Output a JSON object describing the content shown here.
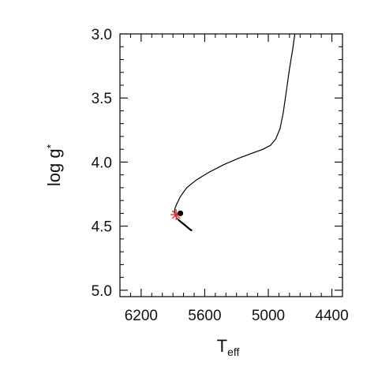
{
  "chart_data": {
    "type": "line",
    "xlabel": "T",
    "xlabel_subscript": "eff",
    "ylabel": "log g",
    "ylabel_subscript": "*",
    "xlim": [
      6400,
      4300
    ],
    "ylim": [
      5.05,
      3.0
    ],
    "x_ticks": [
      6200,
      5600,
      5000,
      4400
    ],
    "x_tick_labels": [
      "6200",
      "5600",
      "5000",
      "4400"
    ],
    "y_ticks": [
      3.0,
      3.5,
      4.0,
      4.5,
      5.0
    ],
    "y_tick_labels": [
      "3.0",
      "3.5",
      "4.0",
      "4.5",
      "5.0"
    ],
    "grid": false,
    "series": [
      {
        "values_x": [
          4750,
          4770,
          4800,
          4830,
          4860,
          4890,
          4930,
          4980,
          5050,
          5150,
          5280,
          5420,
          5560,
          5680,
          5770,
          5830,
          5865,
          5880,
          5885,
          5880,
          5870,
          5850,
          5820,
          5790,
          5760,
          5740,
          5720
        ],
        "values_y": [
          3.0,
          3.12,
          3.27,
          3.45,
          3.62,
          3.74,
          3.82,
          3.87,
          3.9,
          3.93,
          3.97,
          4.02,
          4.08,
          4.14,
          4.2,
          4.27,
          4.33,
          4.36,
          4.38,
          4.41,
          4.43,
          4.45,
          4.47,
          4.49,
          4.51,
          4.525,
          4.535
        ]
      }
    ],
    "markers": [
      {
        "kind": "star",
        "color": "#e03030",
        "x": 5870,
        "y": 4.41
      },
      {
        "kind": "dot",
        "color": "#000000",
        "x": 5830,
        "y": 4.4
      }
    ]
  }
}
